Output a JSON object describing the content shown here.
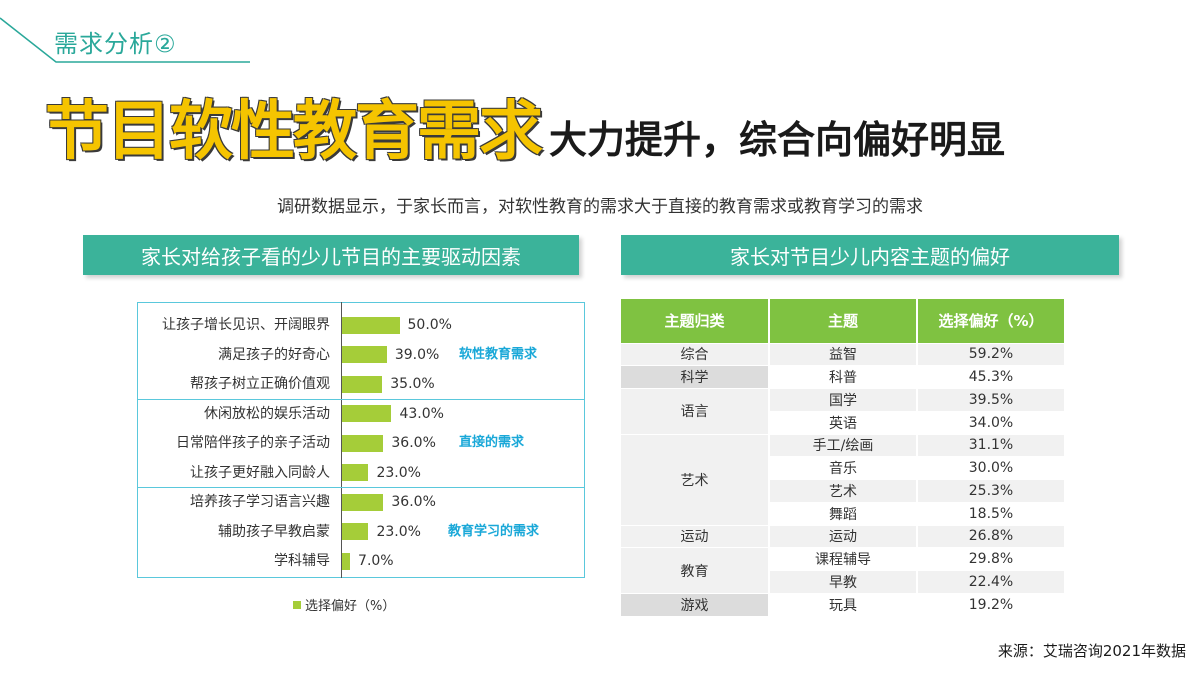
{
  "section_label": "需求分析②",
  "headline": {
    "highlight": "节目软性教育需求",
    "rest": "大力提升，综合向偏好明显"
  },
  "subtitle": "调研数据显示，于家长而言，对软性教育的需求大于直接的教育需求或教育学习的需求",
  "left_panel_title": "家长对给孩子看的少儿节目的主要驱动因素",
  "right_panel_title": "家长对节目少儿内容主题的偏好",
  "chart_data": {
    "type": "bar",
    "orientation": "horizontal",
    "categories": [
      "让孩子增长见识、开阔眼界",
      "满足孩子的好奇心",
      "帮孩子树立正确价值观",
      "休闲放松的娱乐活动",
      "日常陪伴孩子的亲子活动",
      "让孩子更好融入同龄人",
      "培养孩子学习语言兴趣",
      "辅助孩子早教启蒙",
      "学科辅导"
    ],
    "values": [
      50.0,
      39.0,
      35.0,
      43.0,
      36.0,
      23.0,
      36.0,
      23.0,
      7.0
    ],
    "value_labels": [
      "50.0%",
      "39.0%",
      "35.0%",
      "43.0%",
      "36.0%",
      "23.0%",
      "36.0%",
      "23.0%",
      "7.0%"
    ],
    "groups": [
      {
        "label": "软性教育需求",
        "start": 0,
        "end": 2
      },
      {
        "label": "直接的需求",
        "start": 3,
        "end": 5
      },
      {
        "label": "教育学习的需求",
        "start": 6,
        "end": 8
      }
    ],
    "legend": "选择偏好（%）",
    "xlim": [
      0,
      100
    ],
    "bar_color": "#a5cd39"
  },
  "table": {
    "headers": [
      "主题归类",
      "主题",
      "选择偏好（%）"
    ],
    "groups": [
      {
        "category": "综合",
        "rows": [
          {
            "theme": "益智",
            "value": "59.2%"
          }
        ]
      },
      {
        "category": "科学",
        "rows": [
          {
            "theme": "科普",
            "value": "45.3%"
          }
        ]
      },
      {
        "category": "语言",
        "rows": [
          {
            "theme": "国学",
            "value": "39.5%"
          },
          {
            "theme": "英语",
            "value": "34.0%"
          }
        ]
      },
      {
        "category": "艺术",
        "rows": [
          {
            "theme": "手工/绘画",
            "value": "31.1%"
          },
          {
            "theme": "音乐",
            "value": "30.0%"
          },
          {
            "theme": "艺术",
            "value": "25.3%"
          },
          {
            "theme": "舞蹈",
            "value": "18.5%"
          }
        ]
      },
      {
        "category": "运动",
        "rows": [
          {
            "theme": "运动",
            "value": "26.8%"
          }
        ]
      },
      {
        "category": "教育",
        "rows": [
          {
            "theme": "课程辅导",
            "value": "29.8%"
          },
          {
            "theme": "早教",
            "value": "22.4%"
          }
        ]
      },
      {
        "category": "游戏",
        "rows": [
          {
            "theme": "玩具",
            "value": "19.2%"
          }
        ]
      }
    ]
  },
  "source": "来源：艾瑞咨询2021年数据",
  "colors": {
    "accent": "#3bb39a",
    "headline_yellow": "#f5c400",
    "bar": "#a5cd39",
    "table_header": "#7fc241",
    "group_label": "#1aa8d8"
  }
}
